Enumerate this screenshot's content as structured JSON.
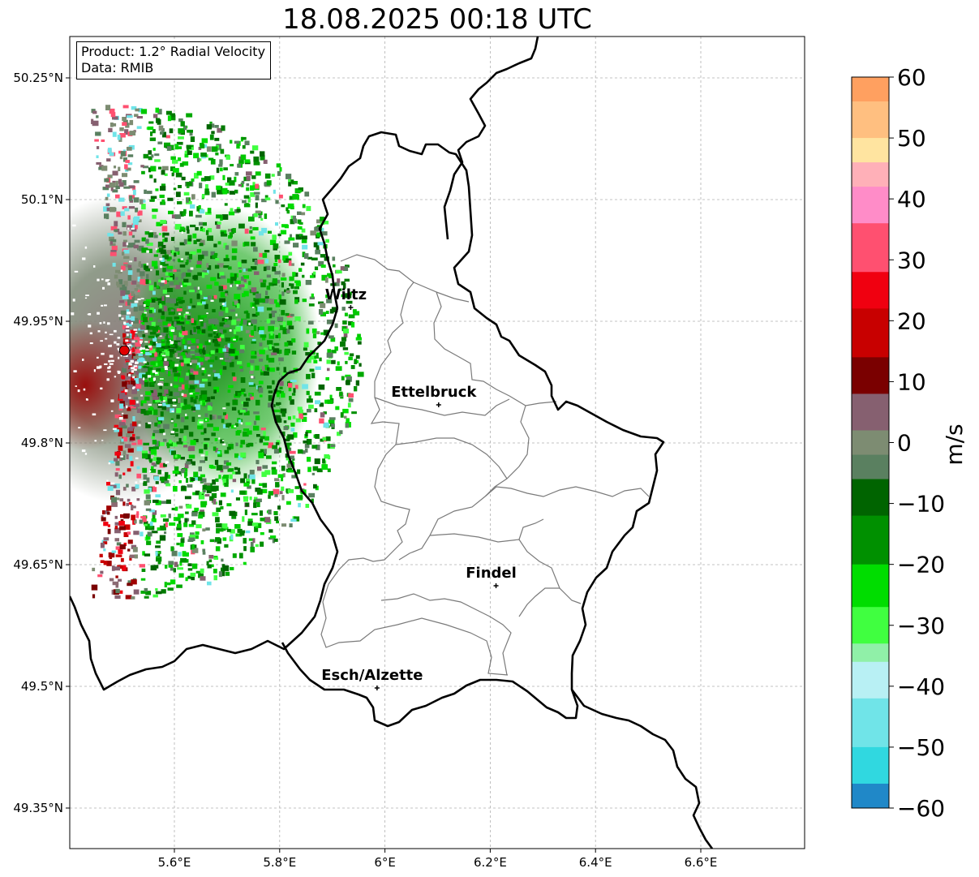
{
  "title": "18.08.2025 00:18 UTC",
  "info_box": {
    "product": "Product: 1.2° Radial Velocity",
    "data": "Data: RMIB"
  },
  "axes": {
    "x_ticks": [
      {
        "value": 5.6,
        "label": "5.6°E"
      },
      {
        "value": 5.8,
        "label": "5.8°E"
      },
      {
        "value": 6.0,
        "label": "6°E"
      },
      {
        "value": 6.2,
        "label": "6.2°E"
      },
      {
        "value": 6.4,
        "label": "6.4°E"
      },
      {
        "value": 6.6,
        "label": "6.6°E"
      }
    ],
    "y_ticks": [
      {
        "value": 50.25,
        "label": "50.25°N"
      },
      {
        "value": 50.1,
        "label": "50.1°N"
      },
      {
        "value": 49.95,
        "label": "49.95°N"
      },
      {
        "value": 49.8,
        "label": "49.8°N"
      },
      {
        "value": 49.65,
        "label": "49.65°N"
      },
      {
        "value": 49.5,
        "label": "49.5°N"
      },
      {
        "value": 49.35,
        "label": "49.35°N"
      }
    ],
    "lon_range": [
      5.4,
      6.8
    ],
    "lat_range": [
      49.3,
      50.3
    ],
    "grid": true
  },
  "cities": [
    {
      "name": "Wiltz",
      "lon": 5.935,
      "lat": 49.967
    },
    {
      "name": "Ettelbruck",
      "lon": 6.102,
      "lat": 49.847
    },
    {
      "name": "Findel",
      "lon": 6.211,
      "lat": 49.624
    },
    {
      "name": "Esch/Alzette",
      "lon": 5.985,
      "lat": 49.498
    }
  ],
  "radar_site": {
    "lon": 5.505,
    "lat": 49.914,
    "color": "#e00000"
  },
  "colorbar": {
    "label": "m/s",
    "min": -60,
    "max": 60,
    "ticks": [
      {
        "value": 60,
        "label": "60"
      },
      {
        "value": 50,
        "label": "50"
      },
      {
        "value": 40,
        "label": "40"
      },
      {
        "value": 30,
        "label": "30"
      },
      {
        "value": 20,
        "label": "20"
      },
      {
        "value": 10,
        "label": "10"
      },
      {
        "value": 0,
        "label": "0"
      },
      {
        "value": -10,
        "label": "−10"
      },
      {
        "value": -20,
        "label": "−20"
      },
      {
        "value": -30,
        "label": "−30"
      },
      {
        "value": -40,
        "label": "−40"
      },
      {
        "value": -50,
        "label": "−50"
      },
      {
        "value": -60,
        "label": "−60"
      }
    ],
    "segments": [
      {
        "from": 56,
        "to": 60,
        "color": "#ffa060"
      },
      {
        "from": 50,
        "to": 56,
        "color": "#ffbf80"
      },
      {
        "from": 46,
        "to": 50,
        "color": "#ffe4a0"
      },
      {
        "from": 42,
        "to": 46,
        "color": "#ffb0b8"
      },
      {
        "from": 36,
        "to": 42,
        "color": "#ff8cc8"
      },
      {
        "from": 28,
        "to": 36,
        "color": "#ff5070"
      },
      {
        "from": 22,
        "to": 28,
        "color": "#f00010"
      },
      {
        "from": 14,
        "to": 22,
        "color": "#c80000"
      },
      {
        "from": 8,
        "to": 14,
        "color": "#7a0000"
      },
      {
        "from": 2,
        "to": 8,
        "color": "#866070"
      },
      {
        "from": -2,
        "to": 2,
        "color": "#7d8c72"
      },
      {
        "from": -6,
        "to": -2,
        "color": "#5a8060"
      },
      {
        "from": -12,
        "to": -6,
        "color": "#006400"
      },
      {
        "from": -20,
        "to": -12,
        "color": "#009000"
      },
      {
        "from": -27,
        "to": -20,
        "color": "#00dd00"
      },
      {
        "from": -33,
        "to": -27,
        "color": "#40ff40"
      },
      {
        "from": -36,
        "to": -33,
        "color": "#90f0a8"
      },
      {
        "from": -42,
        "to": -36,
        "color": "#b8f0f4"
      },
      {
        "from": -50,
        "to": -42,
        "color": "#70e4e8"
      },
      {
        "from": -56,
        "to": -50,
        "color": "#30d8e0"
      },
      {
        "from": -60,
        "to": -56,
        "color": "#2088c8"
      }
    ]
  }
}
